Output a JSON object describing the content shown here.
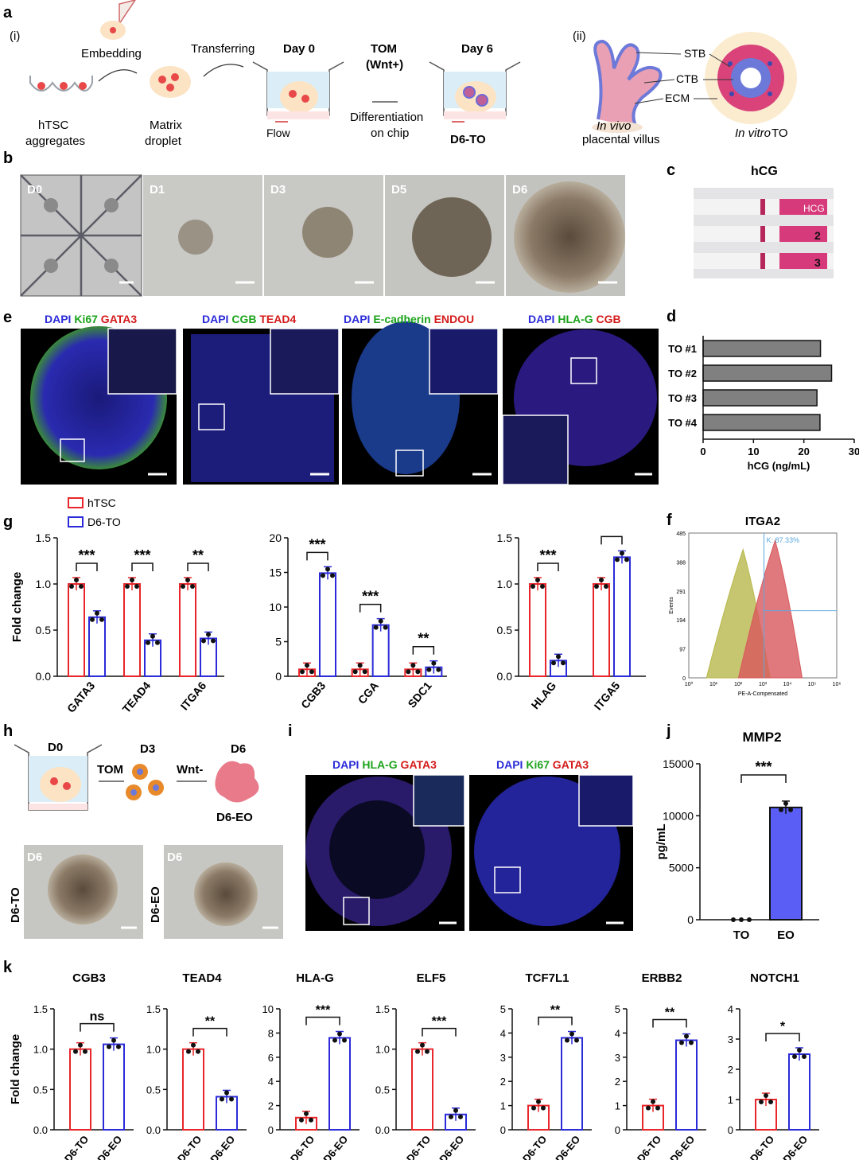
{
  "panel_letters": {
    "a": "a",
    "b": "b",
    "c": "c",
    "d": "d",
    "e": "e",
    "f": "f",
    "g": "g",
    "h": "h",
    "i": "i",
    "j": "j",
    "k": "k"
  },
  "schematic_a": {
    "part_i": "(i)",
    "part_ii": "(ii)",
    "hTSC": "hTSC",
    "aggregates": "aggregates",
    "embedding": "Embedding",
    "matrix": "Matrix",
    "droplet": "droplet",
    "transferring": "Transferring",
    "day0": "Day 0",
    "flow": "Flow",
    "tom": "TOM",
    "wnt": "(Wnt+)",
    "differentiation": "Differentiation",
    "on_chip": "on chip",
    "day6": "Day 6",
    "d6_to": "D6-TO",
    "stb": "STB",
    "ctb": "CTB",
    "ecm": "ECM",
    "in_vivo": "In vivo",
    "placental_villus": "placental villus",
    "in_vitro": "In vitro",
    "to": "TO"
  },
  "panel_b": {
    "labels": [
      "D0",
      "D1",
      "D3",
      "D5",
      "D6"
    ]
  },
  "panel_c": {
    "title": "hCG",
    "strip_marks": [
      "HCG",
      "2",
      "3"
    ]
  },
  "panel_e": {
    "panels": [
      {
        "words": [
          {
            "t": "DAPI",
            "c": "#2b2bd9"
          },
          {
            "t": " Ki67",
            "c": "#1aa31a"
          },
          {
            "t": " GATA3",
            "c": "#d41a1a"
          }
        ]
      },
      {
        "words": [
          {
            "t": "DAPI",
            "c": "#2b2bd9"
          },
          {
            "t": " CGB",
            "c": "#1aa31a"
          },
          {
            "t": " TEAD4",
            "c": "#d41a1a"
          }
        ]
      },
      {
        "words": [
          {
            "t": "DAPI",
            "c": "#2b2bd9"
          },
          {
            "t": " E-cadherin",
            "c": "#1aa31a"
          },
          {
            "t": " ENDOU",
            "c": "#d41a1a"
          }
        ]
      },
      {
        "words": [
          {
            "t": "DAPI",
            "c": "#2b2bd9"
          },
          {
            "t": " HLA-G",
            "c": "#1aa31a"
          },
          {
            "t": " CGB",
            "c": "#d41a1a"
          }
        ]
      }
    ]
  },
  "panel_i": {
    "panels": [
      {
        "words": [
          {
            "t": "DAPI",
            "c": "#2b2bd9"
          },
          {
            "t": " HLA-G",
            "c": "#1aa31a"
          },
          {
            "t": " GATA3",
            "c": "#d41a1a"
          }
        ]
      },
      {
        "words": [
          {
            "t": "DAPI",
            "c": "#2b2bd9"
          },
          {
            "t": " Ki67",
            "c": "#1aa31a"
          },
          {
            "t": " GATA3",
            "c": "#d41a1a"
          }
        ]
      }
    ]
  },
  "panel_h": {
    "d0": "D0",
    "tom": "TOM",
    "d3": "D3",
    "wnt_minus": "Wnt-",
    "d6": "D6",
    "d6_eo": "D6-EO",
    "photo_labels": [
      "D6",
      "D6"
    ],
    "side_labels": [
      "D6-TO",
      "D6-EO"
    ]
  },
  "colors": {
    "htsc": "#e8262b",
    "d6to": "#2b2bd9",
    "to": "#e8262b",
    "eo": "#2b2bd9",
    "eo_fill": "#5a5ef5",
    "hcg_bar": "#808080"
  },
  "chart_data": [
    {
      "id": "d",
      "type": "bar",
      "orientation": "horizontal",
      "categories": [
        "TO #1",
        "TO #2",
        "TO #3",
        "TO #4"
      ],
      "values": [
        23.3,
        25.5,
        22.6,
        23.2
      ],
      "xlabel": "hCG (ng/mL)",
      "xlim": [
        0,
        30
      ],
      "xticks": [
        "0",
        "10",
        "20",
        "30"
      ]
    },
    {
      "id": "f",
      "type": "area",
      "title": "ITGA2",
      "annotation": "K: 87.33%",
      "xlabel": "PE-A-Compensated",
      "ylabel": "Events",
      "yticks": [
        "0",
        "97",
        "194",
        "291",
        "388",
        "485"
      ],
      "xticks": [
        "10⁰",
        "10¹",
        "10²",
        "10³",
        "10⁴",
        "10⁵",
        "10⁶"
      ],
      "series": [
        {
          "peak_log10": 2.2,
          "peak_events": 430
        },
        {
          "peak_log10": 3.5,
          "peak_events": 460
        }
      ]
    },
    {
      "id": "g",
      "type": "bar",
      "ylabel": "Fold change",
      "legend": [
        "hTSC",
        "D6-TO"
      ],
      "groups": [
        {
          "categories": [
            "GATA3",
            "TEAD4",
            "ITGA6"
          ],
          "ylim": [
            0,
            1.5
          ],
          "yticks": [
            "0.0",
            "0.5",
            "1.0",
            "1.5"
          ],
          "hTSC": [
            1.0,
            1.0,
            1.0
          ],
          "D6-TO": [
            0.64,
            0.39,
            0.41
          ],
          "sig": [
            "***",
            "***",
            "**"
          ]
        },
        {
          "categories": [
            "CGB3",
            "CGA",
            "SDC1"
          ],
          "ylim": [
            0,
            20
          ],
          "yticks": [
            "0",
            "5",
            "10",
            "15",
            "20"
          ],
          "hTSC": [
            1.0,
            1.0,
            1.0
          ],
          "D6-TO": [
            14.9,
            7.4,
            1.3
          ],
          "sig": [
            "***",
            "***",
            "**"
          ]
        },
        {
          "categories": [
            "HLAG",
            "ITGA5"
          ],
          "ylim": [
            0,
            1.5
          ],
          "yticks": [
            "0.0",
            "0.5",
            "1.0",
            "1.5"
          ],
          "hTSC": [
            1.0,
            1.0
          ],
          "D6-TO": [
            0.17,
            1.29
          ],
          "sig": [
            "***",
            ""
          ]
        }
      ]
    },
    {
      "id": "j",
      "type": "bar",
      "title": "MMP2",
      "ylabel": "pg/mL",
      "categories": [
        "TO",
        "EO"
      ],
      "values": [
        0,
        10800
      ],
      "ylim": [
        0,
        15000
      ],
      "yticks": [
        "0",
        "5000",
        "10000",
        "15000"
      ],
      "sig": "***"
    },
    {
      "id": "k",
      "type": "bar",
      "ylabel": "Fold change",
      "categories": [
        "D6-TO",
        "D6-EO"
      ],
      "panels": [
        {
          "title": "CGB3",
          "values": [
            1.0,
            1.06
          ],
          "ylim": [
            0,
            1.5
          ],
          "yticks": [
            "0.0",
            "0.5",
            "1.0",
            "1.5"
          ],
          "sig": "ns"
        },
        {
          "title": "TEAD4",
          "values": [
            1.0,
            0.41
          ],
          "ylim": [
            0,
            1.5
          ],
          "yticks": [
            "0.0",
            "0.5",
            "1.0",
            "1.5"
          ],
          "sig": "**"
        },
        {
          "title": "HLA-G",
          "values": [
            1.0,
            7.6
          ],
          "ylim": [
            0,
            10
          ],
          "yticks": [
            "0",
            "2",
            "4",
            "6",
            "8",
            "10"
          ],
          "sig": "***"
        },
        {
          "title": "ELF5",
          "values": [
            1.0,
            0.19
          ],
          "ylim": [
            0,
            1.5
          ],
          "yticks": [
            "0.0",
            "0.5",
            "1.0",
            "1.5"
          ],
          "sig": "***"
        },
        {
          "title": "TCF7L1",
          "values": [
            1.0,
            3.8
          ],
          "ylim": [
            0,
            5
          ],
          "yticks": [
            "0",
            "1",
            "2",
            "3",
            "4",
            "5"
          ],
          "sig": "**"
        },
        {
          "title": "ERBB2",
          "values": [
            1.0,
            3.7
          ],
          "ylim": [
            0,
            5
          ],
          "yticks": [
            "0",
            "1",
            "2",
            "3",
            "4",
            "5"
          ],
          "sig": "**"
        },
        {
          "title": "NOTCH1",
          "values": [
            1.0,
            2.5
          ],
          "ylim": [
            0,
            4
          ],
          "yticks": [
            "0",
            "1",
            "2",
            "3",
            "4"
          ],
          "sig": "*"
        }
      ]
    }
  ]
}
